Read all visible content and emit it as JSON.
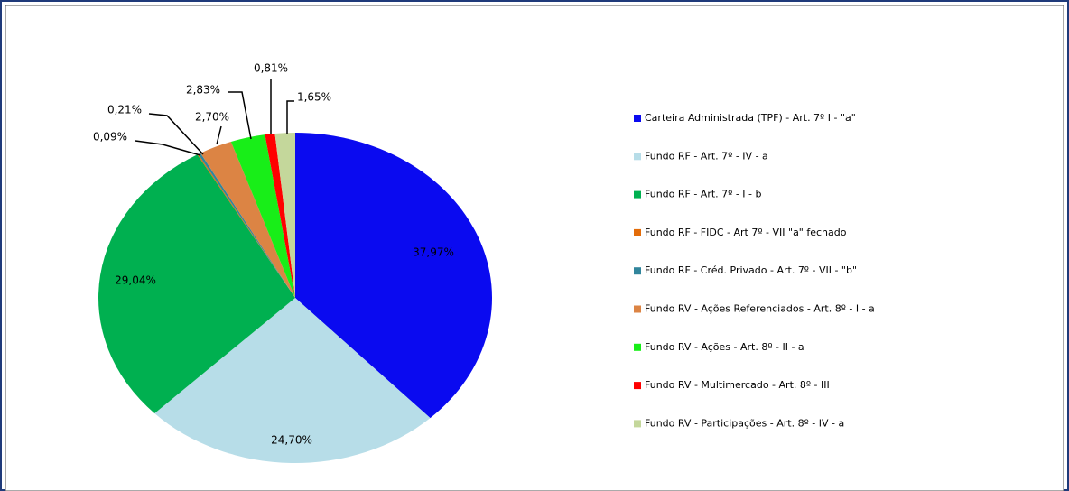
{
  "chart_data": {
    "type": "pie",
    "categories": [
      "Carteira Administrada (TPF) - Art. 7º I - \"a\"",
      "Fundo RF - Art. 7º - IV - a",
      "Fundo RF - Art. 7º - I - b",
      "Fundo RF - FIDC - Art 7º - VII \"a\" fechado",
      "Fundo RF - Créd. Privado - Art. 7º - VII - \"b\"",
      "Fundo RV - Ações Referenciados - Art. 8º - I - a",
      "Fundo RV - Ações - Art. 8º - II - a",
      "Fundo RV - Multimercado - Art. 8º - III",
      "Fundo RV - Participações - Art. 8º - IV - a"
    ],
    "values": [
      37.97,
      24.7,
      29.04,
      0.09,
      0.21,
      2.7,
      2.83,
      0.81,
      1.65
    ],
    "value_labels": [
      "37,97%",
      "24,70%",
      "29,04%",
      "0,09%",
      "0,21%",
      "2,70%",
      "2,83%",
      "0,81%",
      "1,65%"
    ],
    "colors": [
      "#0a0af0",
      "#b7dde8",
      "#00b050",
      "#e36c09",
      "#31859c",
      "#dc8444",
      "#18ee18",
      "#ff0000",
      "#c4d79b"
    ],
    "legend": "right"
  }
}
